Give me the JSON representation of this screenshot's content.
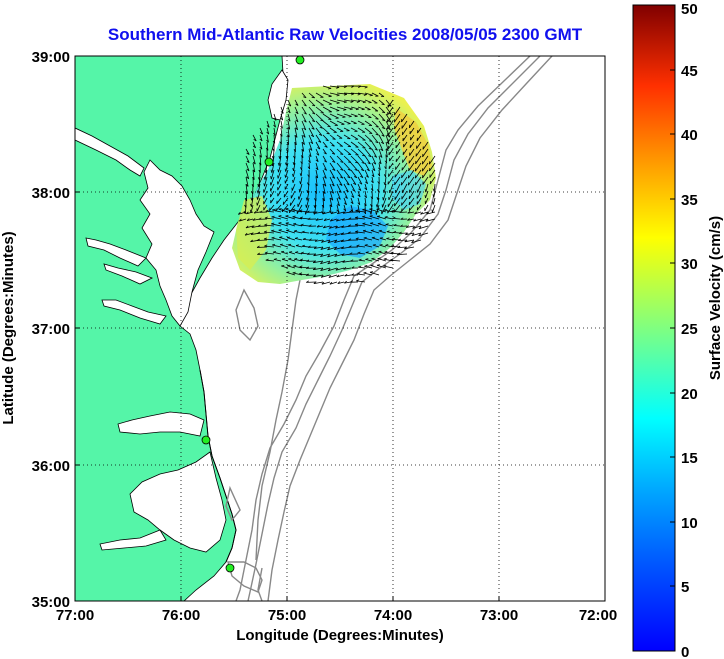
{
  "map": {
    "title": "Southern Mid-Atlantic Raw Velocities 2008/05/05 2300 GMT",
    "x_axis_label": "Longitude (Degrees:Minutes)",
    "y_axis_label": "Latitude (Degrees:Minutes)",
    "lon_range": [
      -77,
      -72
    ],
    "lat_range": [
      35,
      39
    ],
    "lon_ticks": [
      {
        "value": -77,
        "label": "77:00"
      },
      {
        "value": -76,
        "label": "76:00"
      },
      {
        "value": -75,
        "label": "75:00"
      },
      {
        "value": -74,
        "label": "74:00"
      },
      {
        "value": -73,
        "label": "73:00"
      },
      {
        "value": -72,
        "label": "72:00"
      }
    ],
    "lat_ticks": [
      {
        "value": 35,
        "label": "35:00"
      },
      {
        "value": 36,
        "label": "36:00"
      },
      {
        "value": 37,
        "label": "37:00"
      },
      {
        "value": 38,
        "label": "38:00"
      },
      {
        "value": 39,
        "label": "39:00"
      }
    ],
    "grid": "dotted",
    "land_color": "#55f5a8",
    "water_color": "#ffffff",
    "bathymetry_color": "#808080",
    "station_color": "#22ee22"
  },
  "colorbar": {
    "label": "Surface Velocity (cm/s)",
    "range": [
      0,
      50
    ],
    "tick_labels": [
      "0",
      "5",
      "10",
      "15",
      "20",
      "25",
      "30",
      "35",
      "40",
      "45",
      "50"
    ],
    "colormap": "jet"
  }
}
